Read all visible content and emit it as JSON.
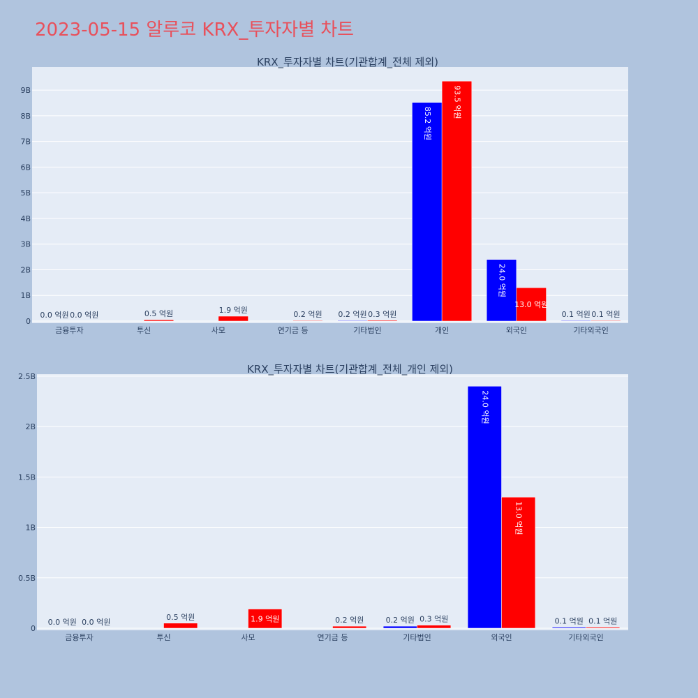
{
  "page": {
    "title": "2023-05-15 알루코 KRX_투자자별 차트"
  },
  "colors": {
    "buy": "#0000ff",
    "sell": "#ff0000",
    "background": "#b0c4de",
    "plot_bg": "#e5ecf6",
    "title": "#e8505b"
  },
  "chart_data": [
    {
      "type": "bar",
      "title": "KRX_투자자별 차트(기관합계_전체 제외)",
      "categories": [
        "금융투자",
        "투신",
        "사모",
        "연기금 등",
        "기타법인",
        "개인",
        "외국인",
        "기타외국인"
      ],
      "yticks": [
        {
          "v": 0,
          "t": "0"
        },
        {
          "v": 1000000000,
          "t": "1B"
        },
        {
          "v": 2000000000,
          "t": "2B"
        },
        {
          "v": 3000000000,
          "t": "3B"
        },
        {
          "v": 4000000000,
          "t": "4B"
        },
        {
          "v": 5000000000,
          "t": "5B"
        },
        {
          "v": 6000000000,
          "t": "6B"
        },
        {
          "v": 7000000000,
          "t": "7B"
        },
        {
          "v": 8000000000,
          "t": "8B"
        },
        {
          "v": 9000000000,
          "t": "9B"
        }
      ],
      "ylim": [
        0,
        9900000000
      ],
      "series": [
        {
          "color": "#0000ff",
          "values": [
            0,
            0,
            0,
            0,
            20000000,
            8520000000,
            2400000000,
            10000000
          ],
          "labels": [
            "0.0 억원",
            "",
            "",
            "",
            "0.2 억원",
            "85.2 억원",
            "24.0 억원",
            "0.1 억원"
          ]
        },
        {
          "color": "#ff0000",
          "values": [
            0,
            50000000,
            190000000,
            20000000,
            30000000,
            9350000000,
            1300000000,
            10000000
          ],
          "labels": [
            "0.0 억원",
            "0.5 억원",
            "1.9 억원",
            "0.2 억원",
            "0.3 억원",
            "93.5 억원",
            "13.0 억원",
            "0.1 억원"
          ]
        }
      ]
    },
    {
      "type": "bar",
      "title": "KRX_투자자별 차트(기관합계_전체_개인 제외)",
      "categories": [
        "금융투자",
        "투신",
        "사모",
        "연기금 등",
        "기타법인",
        "외국인",
        "기타외국인"
      ],
      "yticks": [
        {
          "v": 0,
          "t": "0"
        },
        {
          "v": 500000000,
          "t": "0.5B"
        },
        {
          "v": 1000000000,
          "t": "1B"
        },
        {
          "v": 1500000000,
          "t": "1.5B"
        },
        {
          "v": 2000000000,
          "t": "2B"
        },
        {
          "v": 2500000000,
          "t": "2.5B"
        }
      ],
      "ylim": [
        0,
        2520000000
      ],
      "series": [
        {
          "color": "#0000ff",
          "values": [
            0,
            0,
            0,
            0,
            20000000,
            2400000000,
            10000000
          ],
          "labels": [
            "0.0 억원",
            "",
            "",
            "",
            "0.2 억원",
            "24.0 억원",
            "0.1 억원"
          ]
        },
        {
          "color": "#ff0000",
          "values": [
            0,
            50000000,
            190000000,
            20000000,
            30000000,
            1300000000,
            10000000
          ],
          "labels": [
            "0.0 억원",
            "0.5 억원",
            "1.9 억원",
            "0.2 억원",
            "0.3 억원",
            "13.0 억원",
            "0.1 억원"
          ]
        }
      ]
    }
  ]
}
